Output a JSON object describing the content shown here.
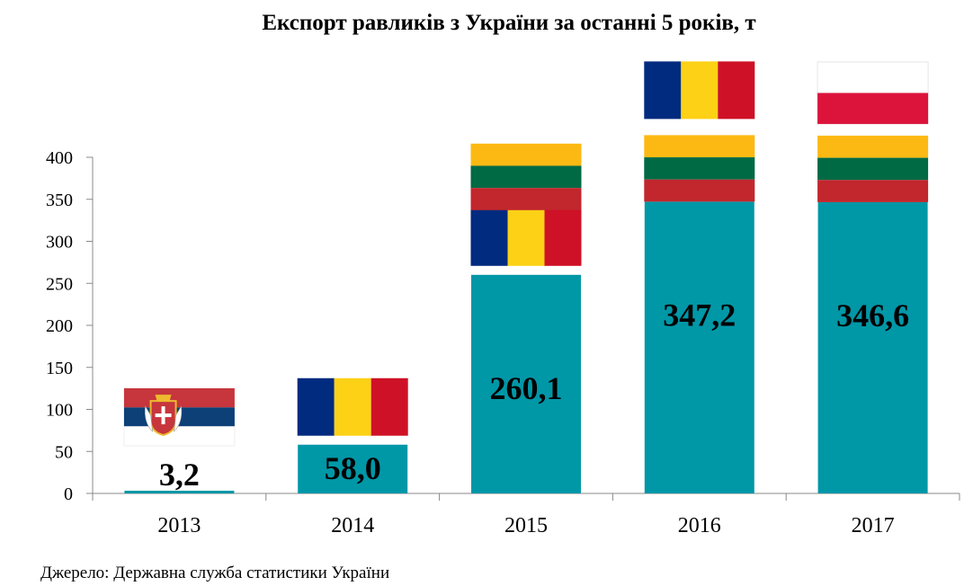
{
  "chart_data": {
    "type": "bar",
    "title": "Експорт равликів з України за останні 5 років, т",
    "categories": [
      "2013",
      "2014",
      "2015",
      "2016",
      "2017"
    ],
    "values": [
      3.2,
      58.0,
      260.1,
      347.2,
      346.6
    ],
    "data_labels": [
      "3,2",
      "58,0",
      "260,1",
      "347,2",
      "346,6"
    ],
    "yticks": [
      "0",
      "50",
      "100",
      "150",
      "200",
      "250",
      "300",
      "350",
      "400"
    ],
    "ylim": [
      0,
      400
    ],
    "xlabel": "",
    "ylabel": "",
    "grid": false,
    "bar_color": "#0097A7",
    "source": "Джерело: Державна служба статистики України",
    "flags": [
      {
        "year": "2013",
        "items": [
          "serbia-flag"
        ]
      },
      {
        "year": "2014",
        "items": [
          "romania-flag"
        ]
      },
      {
        "year": "2015",
        "items": [
          "romania-flag",
          "lithuania-flag"
        ]
      },
      {
        "year": "2016",
        "items": [
          "lithuania-flag",
          "romania-flag"
        ]
      },
      {
        "year": "2017",
        "items": [
          "lithuania-flag",
          "poland-flag"
        ]
      }
    ]
  }
}
